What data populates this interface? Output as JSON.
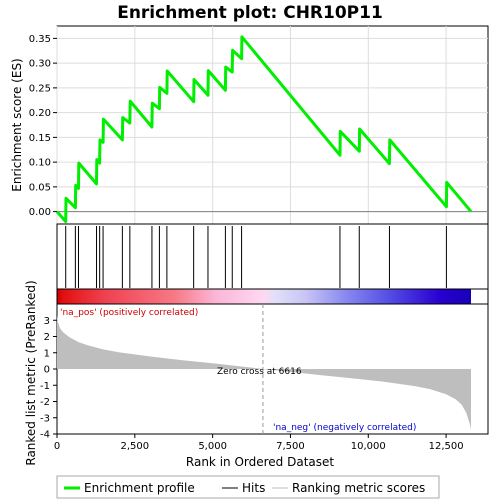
{
  "chart_data": {
    "type": "line",
    "title": "Enrichment plot: CHR10P11",
    "x_max": 13300,
    "xlabel": "Rank in Ordered Dataset",
    "x_ticks": [
      0,
      2500,
      5000,
      7500,
      10000,
      12500
    ],
    "x_tick_labels": [
      "0",
      "2,500",
      "5,000",
      "7,500",
      "10,000",
      "12,500"
    ],
    "enrichment": {
      "ylabel": "Enrichment score (ES)",
      "ylim": [
        -0.025,
        0.375
      ],
      "y_ticks": [
        0.0,
        0.05,
        0.1,
        0.15,
        0.2,
        0.25,
        0.3,
        0.35
      ],
      "y_tick_labels": [
        "0.00",
        "0.05",
        "0.10",
        "0.15",
        "0.20",
        "0.25",
        "0.30",
        "0.35"
      ],
      "series": {
        "name": "Enrichment profile",
        "x": [
          0,
          280,
          290,
          590,
          600,
          690,
          700,
          1270,
          1280,
          1370,
          1380,
          1480,
          1490,
          2100,
          2110,
          2340,
          2350,
          3050,
          3060,
          3290,
          3300,
          3530,
          3540,
          4390,
          4400,
          4850,
          4860,
          5410,
          5420,
          5630,
          5640,
          5930,
          5940,
          9090,
          9100,
          9710,
          9720,
          10680,
          10690,
          12510,
          12520,
          13300
        ],
        "y": [
          0.0,
          -0.02,
          0.027,
          0.008,
          0.053,
          0.047,
          0.098,
          0.056,
          0.105,
          0.098,
          0.145,
          0.14,
          0.187,
          0.145,
          0.19,
          0.179,
          0.223,
          0.171,
          0.219,
          0.208,
          0.251,
          0.239,
          0.284,
          0.222,
          0.267,
          0.235,
          0.285,
          0.245,
          0.292,
          0.282,
          0.326,
          0.309,
          0.353,
          0.114,
          0.162,
          0.122,
          0.167,
          0.097,
          0.145,
          0.01,
          0.059,
          0.0
        ]
      }
    },
    "hits": {
      "name": "Hits",
      "positions": [
        280,
        590,
        690,
        1270,
        1370,
        1480,
        2100,
        2340,
        3050,
        3290,
        3530,
        4390,
        4850,
        5410,
        5630,
        5930,
        9090,
        9710,
        10680,
        12510
      ]
    },
    "ranking_metric": {
      "name": "Ranking metric scores",
      "ylabel": "Ranked list metric (PreRanked)",
      "ylim": [
        -4,
        4
      ],
      "y_ticks": [
        -4,
        -3,
        -2,
        -1,
        0,
        1,
        2,
        3
      ],
      "y_tick_labels": [
        "-4",
        "-3",
        "-2",
        "-1",
        "0",
        "1",
        "2",
        "3"
      ],
      "curve_x": [
        0,
        30,
        100,
        200,
        400,
        700,
        1000,
        1500,
        2000,
        3000,
        4000,
        5000,
        6000,
        6616,
        7500,
        8500,
        9500,
        10500,
        11500,
        12000,
        12500,
        12800,
        13000,
        13150,
        13250,
        13300
      ],
      "curve_y": [
        3.3,
        2.9,
        2.5,
        2.25,
        1.95,
        1.65,
        1.45,
        1.2,
        1.02,
        0.77,
        0.55,
        0.35,
        0.14,
        0.0,
        -0.18,
        -0.38,
        -0.58,
        -0.78,
        -1.05,
        -1.25,
        -1.55,
        -1.85,
        -2.2,
        -2.7,
        -3.3,
        -3.7
      ],
      "zero_cross_label": "Zero cross at 6616",
      "zero_cross": 6616,
      "pos_label": "'na_pos' (positively correlated)",
      "neg_label": "'na_neg' (negatively correlated)"
    },
    "colors": {
      "profile": "#00ee00",
      "hits": "#000000",
      "metric_fill": "#bebebe",
      "pos_label": "#cc0000",
      "neg_label": "#0000cc",
      "zero_line": "#999999"
    },
    "heatbar_gradient": [
      {
        "x": 0,
        "color": "#c80000"
      },
      {
        "x": 200,
        "color": "#e21010"
      },
      {
        "x": 1500,
        "color": "#ef4050"
      },
      {
        "x": 3800,
        "color": "#f77a86"
      },
      {
        "x": 5100,
        "color": "#fbb6d8"
      },
      {
        "x": 6616,
        "color": "#ffd8f0"
      },
      {
        "x": 7000,
        "color": "#e2e0f8"
      },
      {
        "x": 8000,
        "color": "#c8c4f4"
      },
      {
        "x": 9200,
        "color": "#8c8cf0"
      },
      {
        "x": 10500,
        "color": "#5a55e6"
      },
      {
        "x": 12300,
        "color": "#2800d0"
      },
      {
        "x": 13300,
        "color": "#1800b8"
      }
    ],
    "legend": {
      "placement": "bottom",
      "items": [
        {
          "label": "Enrichment profile",
          "color": "#00ee00",
          "kind": "thick"
        },
        {
          "label": "Hits",
          "color": "#000000",
          "kind": "thin"
        },
        {
          "label": "Ranking metric scores",
          "color": "#bebebe",
          "kind": "thin"
        }
      ]
    }
  }
}
